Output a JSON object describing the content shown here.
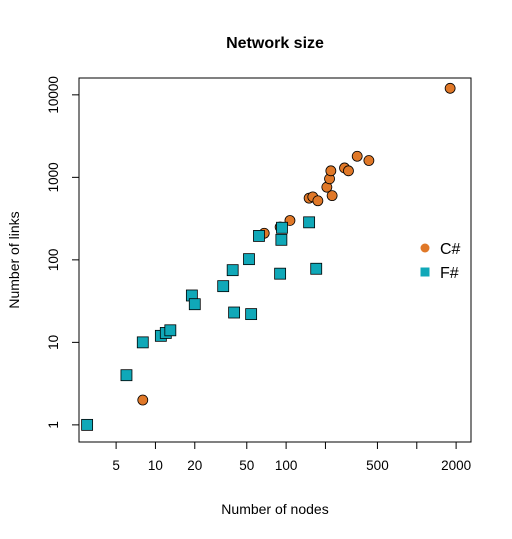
{
  "chart_data": {
    "type": "scatter",
    "title": "Network size",
    "xlabel": "Number of nodes",
    "ylabel": "Number of links",
    "x_scale": "log",
    "y_scale": "log",
    "xlim": [
      2.6,
      2600
    ],
    "ylim": [
      0.62,
      16000
    ],
    "x_ticks": [
      5,
      10,
      20,
      50,
      100,
      500,
      2000
    ],
    "x_ticks_unlabeled": [
      200,
      1000
    ],
    "y_ticks": [
      1,
      10,
      100,
      1000,
      10000
    ],
    "grid": false,
    "legend_position": "right",
    "series": [
      {
        "name": "C#",
        "marker": "circle",
        "color": "#E07828",
        "points": [
          [
            8,
            2
          ],
          [
            68,
            210
          ],
          [
            90,
            250
          ],
          [
            107,
            300
          ],
          [
            150,
            560
          ],
          [
            160,
            580
          ],
          [
            175,
            520
          ],
          [
            205,
            760
          ],
          [
            215,
            960
          ],
          [
            220,
            1200
          ],
          [
            225,
            600
          ],
          [
            280,
            1300
          ],
          [
            300,
            1200
          ],
          [
            350,
            1800
          ],
          [
            430,
            1600
          ],
          [
            1800,
            12000
          ]
        ]
      },
      {
        "name": "F#",
        "marker": "square",
        "color": "#10A8B8",
        "points": [
          [
            3,
            1
          ],
          [
            6,
            4
          ],
          [
            8,
            10
          ],
          [
            11,
            12
          ],
          [
            12,
            13
          ],
          [
            13,
            14
          ],
          [
            19,
            37
          ],
          [
            20,
            29
          ],
          [
            33,
            48
          ],
          [
            39,
            75
          ],
          [
            40,
            23
          ],
          [
            52,
            102
          ],
          [
            54,
            22
          ],
          [
            62,
            195
          ],
          [
            90,
            68
          ],
          [
            92,
            175
          ],
          [
            93,
            245
          ],
          [
            150,
            285
          ],
          [
            170,
            78
          ]
        ]
      }
    ]
  }
}
